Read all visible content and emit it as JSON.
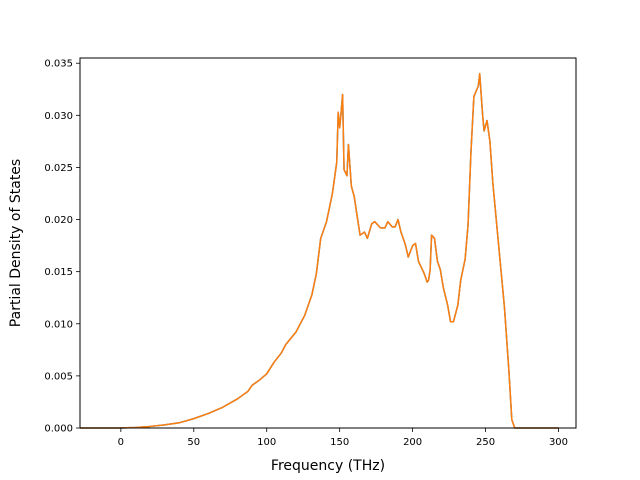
{
  "chart_data": {
    "type": "line",
    "title": "",
    "xlabel": "Frequency (THz)",
    "ylabel": "Partial Density of States",
    "xlim": [
      -28,
      312
    ],
    "ylim": [
      0,
      0.0355
    ],
    "x_ticks": [
      0,
      50,
      100,
      150,
      200,
      250,
      300
    ],
    "x_tick_labels": [
      "0",
      "50",
      "100",
      "150",
      "200",
      "250",
      "300"
    ],
    "y_ticks": [
      0.0,
      0.005,
      0.01,
      0.015,
      0.02,
      0.025,
      0.03,
      0.035
    ],
    "y_tick_labels": [
      "0.000",
      "0.005",
      "0.010",
      "0.015",
      "0.020",
      "0.025",
      "0.030",
      "0.035"
    ],
    "grid": false,
    "legend": "none",
    "series": [
      {
        "color": "#1f77b4",
        "points": [
          [
            -28,
            0
          ],
          [
            0,
            0
          ],
          [
            10,
            5e-05
          ],
          [
            20,
            0.00015
          ],
          [
            30,
            0.0003
          ],
          [
            40,
            0.0005
          ],
          [
            50,
            0.0009
          ],
          [
            60,
            0.0014
          ],
          [
            70,
            0.002
          ],
          [
            80,
            0.0028
          ],
          [
            87,
            0.0035
          ],
          [
            90,
            0.0041
          ],
          [
            95,
            0.0046
          ],
          [
            100,
            0.0052
          ],
          [
            105,
            0.0063
          ],
          [
            110,
            0.0072
          ],
          [
            113,
            0.008
          ],
          [
            120,
            0.0092
          ],
          [
            126,
            0.0108
          ],
          [
            131,
            0.0128
          ],
          [
            134,
            0.0148
          ],
          [
            137,
            0.0182
          ],
          [
            141,
            0.0198
          ],
          [
            145,
            0.0225
          ],
          [
            148,
            0.0255
          ],
          [
            149,
            0.0303
          ],
          [
            150,
            0.0288
          ],
          [
            151,
            0.0303
          ],
          [
            152,
            0.032
          ],
          [
            153,
            0.0248
          ],
          [
            155,
            0.0242
          ],
          [
            156,
            0.0272
          ],
          [
            158,
            0.0232
          ],
          [
            160,
            0.0222
          ],
          [
            162,
            0.0203
          ],
          [
            164,
            0.0185
          ],
          [
            167,
            0.0188
          ],
          [
            169,
            0.0182
          ],
          [
            172,
            0.0196
          ],
          [
            174,
            0.0198
          ],
          [
            178,
            0.0192
          ],
          [
            181,
            0.0192
          ],
          [
            183,
            0.0198
          ],
          [
            186,
            0.0193
          ],
          [
            188,
            0.0193
          ],
          [
            190,
            0.02
          ],
          [
            192,
            0.0188
          ],
          [
            195,
            0.0176
          ],
          [
            197,
            0.0164
          ],
          [
            200,
            0.0175
          ],
          [
            202,
            0.0177
          ],
          [
            204,
            0.016
          ],
          [
            208,
            0.0148
          ],
          [
            210,
            0.014
          ],
          [
            211,
            0.0142
          ],
          [
            212,
            0.0152
          ],
          [
            213,
            0.0185
          ],
          [
            215,
            0.0182
          ],
          [
            217,
            0.016
          ],
          [
            219,
            0.0152
          ],
          [
            221,
            0.0135
          ],
          [
            224,
            0.0118
          ],
          [
            226,
            0.0102
          ],
          [
            228,
            0.0102
          ],
          [
            231,
            0.0118
          ],
          [
            233,
            0.0142
          ],
          [
            236,
            0.0162
          ],
          [
            238,
            0.0195
          ],
          [
            240,
            0.0265
          ],
          [
            242,
            0.0318
          ],
          [
            245,
            0.0328
          ],
          [
            246,
            0.034
          ],
          [
            248,
            0.03
          ],
          [
            249,
            0.0285
          ],
          [
            251,
            0.0295
          ],
          [
            253,
            0.0275
          ],
          [
            255,
            0.0235
          ],
          [
            257,
            0.0205
          ],
          [
            260,
            0.016
          ],
          [
            263,
            0.0115
          ],
          [
            266,
            0.0055
          ],
          [
            268,
            0.0008
          ],
          [
            270,
            0
          ],
          [
            300,
            0
          ]
        ]
      },
      {
        "color": "#ff7f0e",
        "points": [
          [
            -28,
            0
          ],
          [
            0,
            0
          ],
          [
            10,
            5e-05
          ],
          [
            20,
            0.00015
          ],
          [
            30,
            0.0003
          ],
          [
            40,
            0.0005
          ],
          [
            50,
            0.0009
          ],
          [
            60,
            0.0014
          ],
          [
            70,
            0.002
          ],
          [
            80,
            0.0028
          ],
          [
            87,
            0.0035
          ],
          [
            90,
            0.0041
          ],
          [
            95,
            0.0046
          ],
          [
            100,
            0.0052
          ],
          [
            105,
            0.0063
          ],
          [
            110,
            0.0072
          ],
          [
            113,
            0.008
          ],
          [
            120,
            0.0092
          ],
          [
            126,
            0.0108
          ],
          [
            131,
            0.0128
          ],
          [
            134,
            0.0148
          ],
          [
            137,
            0.0182
          ],
          [
            141,
            0.0198
          ],
          [
            145,
            0.0225
          ],
          [
            148,
            0.0255
          ],
          [
            149,
            0.0303
          ],
          [
            150,
            0.0288
          ],
          [
            151,
            0.0303
          ],
          [
            152,
            0.032
          ],
          [
            153,
            0.0248
          ],
          [
            155,
            0.0242
          ],
          [
            156,
            0.0272
          ],
          [
            158,
            0.0232
          ],
          [
            160,
            0.0222
          ],
          [
            162,
            0.0203
          ],
          [
            164,
            0.0185
          ],
          [
            167,
            0.0188
          ],
          [
            169,
            0.0182
          ],
          [
            172,
            0.0196
          ],
          [
            174,
            0.0198
          ],
          [
            178,
            0.0192
          ],
          [
            181,
            0.0192
          ],
          [
            183,
            0.0198
          ],
          [
            186,
            0.0193
          ],
          [
            188,
            0.0193
          ],
          [
            190,
            0.02
          ],
          [
            192,
            0.0188
          ],
          [
            195,
            0.0176
          ],
          [
            197,
            0.0164
          ],
          [
            200,
            0.0175
          ],
          [
            202,
            0.0177
          ],
          [
            204,
            0.016
          ],
          [
            208,
            0.0148
          ],
          [
            210,
            0.014
          ],
          [
            211,
            0.0142
          ],
          [
            212,
            0.0152
          ],
          [
            213,
            0.0185
          ],
          [
            215,
            0.0182
          ],
          [
            217,
            0.016
          ],
          [
            219,
            0.0152
          ],
          [
            221,
            0.0135
          ],
          [
            224,
            0.0118
          ],
          [
            226,
            0.0102
          ],
          [
            228,
            0.0102
          ],
          [
            231,
            0.0118
          ],
          [
            233,
            0.0142
          ],
          [
            236,
            0.0162
          ],
          [
            238,
            0.0195
          ],
          [
            240,
            0.0265
          ],
          [
            242,
            0.0318
          ],
          [
            245,
            0.0328
          ],
          [
            246,
            0.034
          ],
          [
            248,
            0.03
          ],
          [
            249,
            0.0285
          ],
          [
            251,
            0.0295
          ],
          [
            253,
            0.0275
          ],
          [
            255,
            0.0235
          ],
          [
            257,
            0.0205
          ],
          [
            260,
            0.016
          ],
          [
            263,
            0.0115
          ],
          [
            266,
            0.0055
          ],
          [
            268,
            0.0008
          ],
          [
            270,
            0
          ],
          [
            300,
            0
          ]
        ]
      }
    ]
  }
}
